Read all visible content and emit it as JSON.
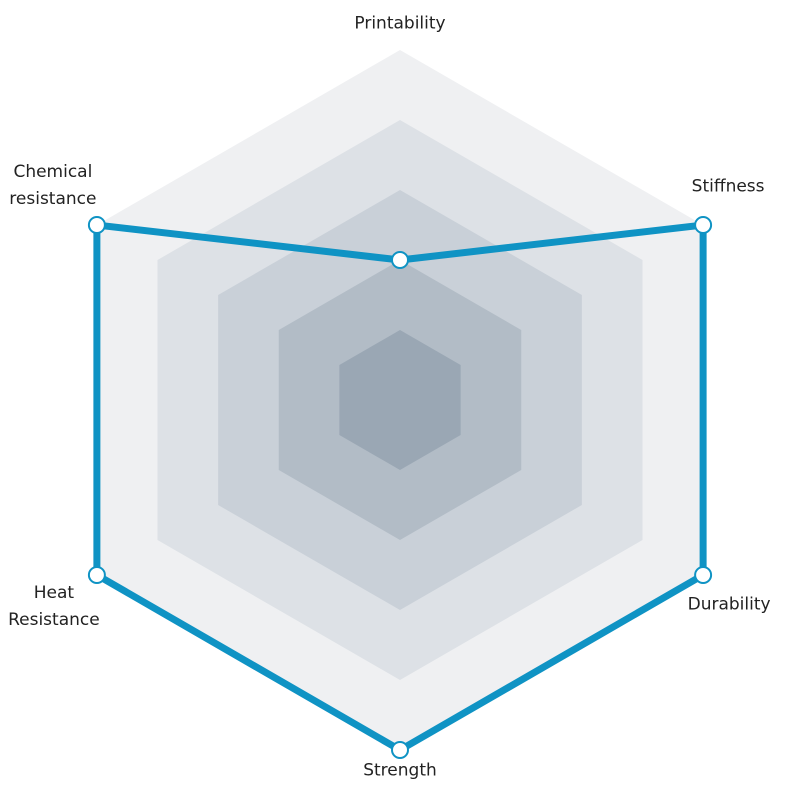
{
  "chart_data": {
    "type": "radar",
    "categories": [
      "Printability",
      "Stiffness",
      "Durability",
      "Strength",
      "Heat\nResistance",
      "Chemical\nresistance"
    ],
    "values": [
      2,
      5,
      5,
      5,
      5,
      5
    ],
    "color": "#0f93c4",
    "ylim": [
      0,
      5
    ],
    "yticks": [
      1,
      2,
      3,
      4,
      5
    ],
    "ring_colors": [
      "#9aa7b4",
      "#b2bcc6",
      "#c9d0d8",
      "#dde1e6",
      "#eff0f2"
    ]
  }
}
